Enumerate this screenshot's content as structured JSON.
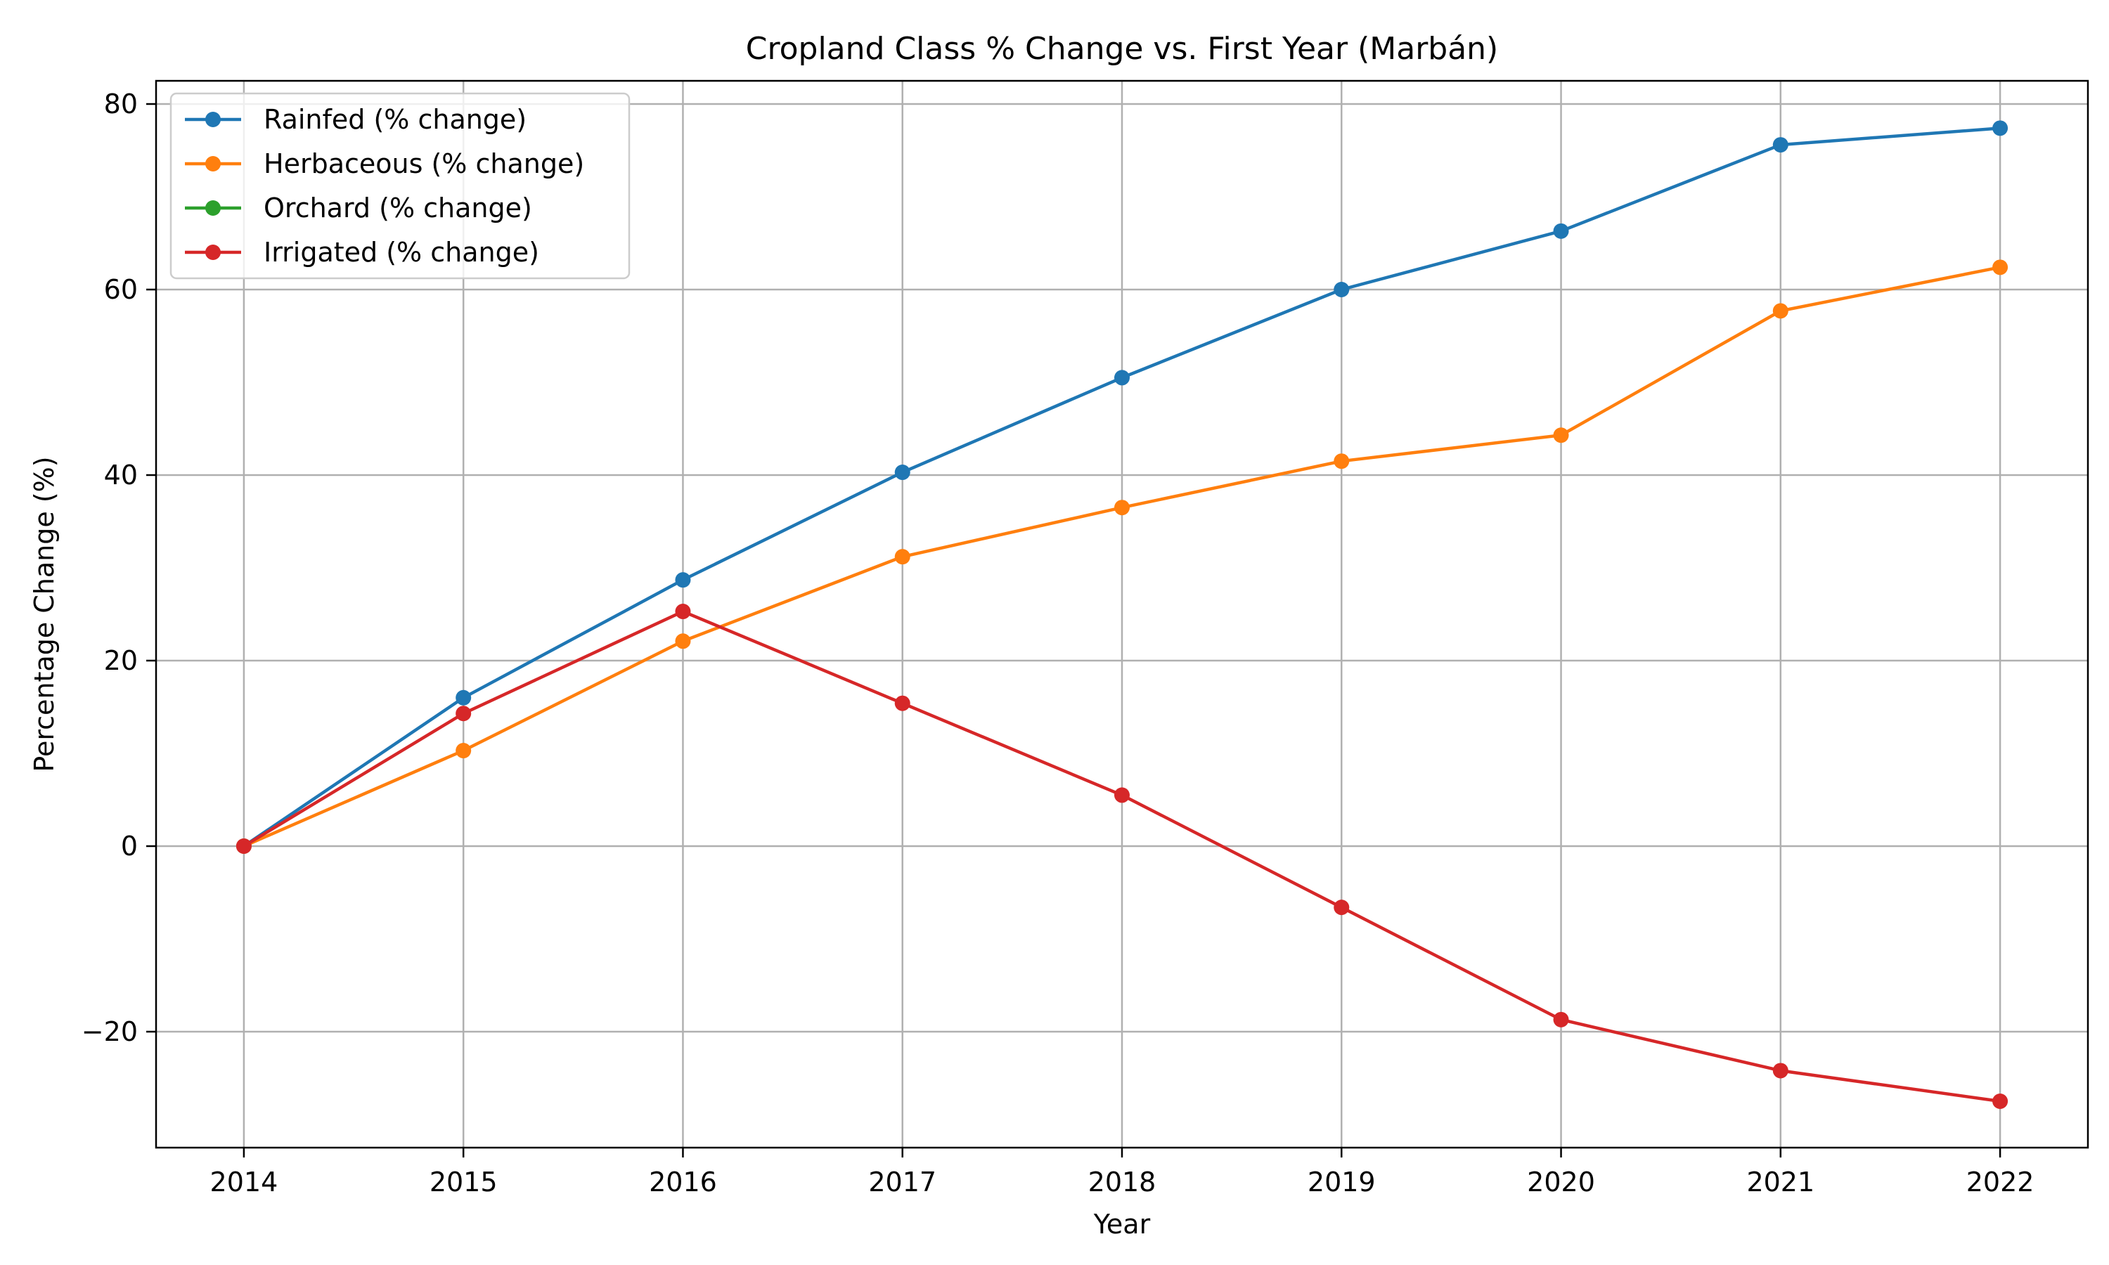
{
  "chart_data": {
    "type": "line",
    "title": "Cropland Class % Change vs. First Year (Marbán)",
    "xlabel": "Year",
    "ylabel": "Percentage Change (%)",
    "x": [
      2014,
      2015,
      2016,
      2017,
      2018,
      2019,
      2020,
      2021,
      2022
    ],
    "x_tick_labels": [
      "2014",
      "2015",
      "2016",
      "2017",
      "2018",
      "2019",
      "2020",
      "2021",
      "2022"
    ],
    "xlim": [
      2013.6,
      2022.4
    ],
    "ylim": [
      -32.5,
      82.5
    ],
    "y_ticks": [
      -20,
      0,
      20,
      40,
      60,
      80
    ],
    "y_tick_labels": [
      "−20",
      "0",
      "20",
      "40",
      "60",
      "80"
    ],
    "grid": true,
    "legend_position": "top-left",
    "markers": true,
    "series": [
      {
        "name": "Rainfed (% change)",
        "color": "#1f77b4",
        "values": [
          0,
          16.0,
          28.7,
          40.3,
          50.5,
          60.0,
          66.3,
          75.6,
          77.4
        ]
      },
      {
        "name": "Herbaceous (% change)",
        "color": "#ff7f0e",
        "values": [
          0,
          10.3,
          22.1,
          31.2,
          36.5,
          41.5,
          44.3,
          57.7,
          62.4
        ]
      },
      {
        "name": "Orchard (% change)",
        "color": "#2ca02c",
        "values": [
          null,
          null,
          null,
          null,
          null,
          null,
          null,
          null,
          null
        ]
      },
      {
        "name": "Irrigated (% change)",
        "color": "#d62728",
        "values": [
          0,
          14.3,
          25.3,
          15.4,
          5.5,
          -6.6,
          -18.7,
          -24.2,
          -27.5
        ]
      }
    ]
  }
}
